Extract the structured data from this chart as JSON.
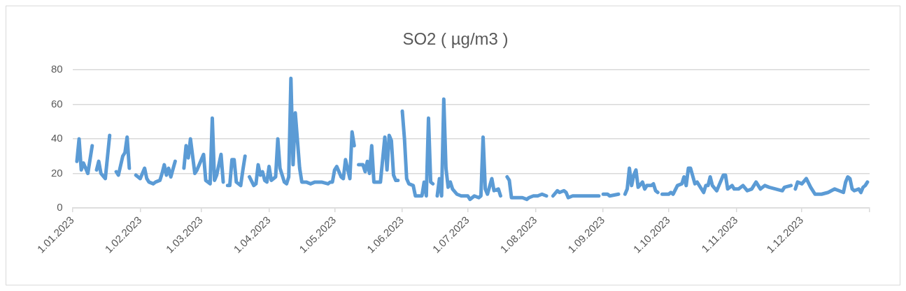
{
  "chart_data": {
    "type": "line",
    "title": "SO2 ( µg/m3 )",
    "x": [
      "2023-01-03",
      "2023-01-04",
      "2023-01-05",
      "2023-01-06",
      "2023-01-08",
      "2023-01-10",
      "2023-01-11",
      "2023-01-12",
      "2023-01-13",
      "2023-01-14",
      "2023-01-16",
      "2023-01-18",
      "2023-01-20",
      "2023-01-21",
      "2023-01-22",
      "2023-01-24",
      "2023-01-25",
      "2023-01-26",
      "2023-01-27",
      "2023-01-29",
      "2023-01-30",
      "2023-02-01",
      "2023-02-03",
      "2023-02-04",
      "2023-02-05",
      "2023-02-07",
      "2023-02-08",
      "2023-02-10",
      "2023-02-11",
      "2023-02-12",
      "2023-02-13",
      "2023-02-14",
      "2023-02-15",
      "2023-02-17",
      "2023-02-19",
      "2023-02-21",
      "2023-02-22",
      "2023-02-23",
      "2023-02-24",
      "2023-02-26",
      "2023-02-27",
      "2023-03-02",
      "2023-03-03",
      "2023-03-05",
      "2023-03-06",
      "2023-03-07",
      "2023-03-08",
      "2023-03-10",
      "2023-03-11",
      "2023-03-12",
      "2023-03-13",
      "2023-03-14",
      "2023-03-15",
      "2023-03-16",
      "2023-03-17",
      "2023-03-19",
      "2023-03-20",
      "2023-03-21",
      "2023-03-22",
      "2023-03-23",
      "2023-03-25",
      "2023-03-26",
      "2023-03-27",
      "2023-03-28",
      "2023-03-29",
      "2023-03-30",
      "2023-03-31",
      "2023-04-01",
      "2023-04-02",
      "2023-04-04",
      "2023-04-05",
      "2023-04-06",
      "2023-04-08",
      "2023-04-09",
      "2023-04-10",
      "2023-04-11",
      "2023-04-12",
      "2023-04-13",
      "2023-04-15",
      "2023-04-16",
      "2023-04-18",
      "2023-04-20",
      "2023-04-22",
      "2023-04-25",
      "2023-04-28",
      "2023-04-29",
      "2023-04-30",
      "2023-05-01",
      "2023-05-02",
      "2023-05-04",
      "2023-05-05",
      "2023-05-06",
      "2023-05-08",
      "2023-05-09",
      "2023-05-10",
      "2023-05-11",
      "2023-05-12",
      "2023-05-14",
      "2023-05-15",
      "2023-05-16",
      "2023-05-17",
      "2023-05-18",
      "2023-05-19",
      "2023-05-20",
      "2023-05-21",
      "2023-05-22",
      "2023-05-24",
      "2023-05-25",
      "2023-05-26",
      "2023-05-27",
      "2023-05-28",
      "2023-05-29",
      "2023-05-30",
      "2023-05-31",
      "2023-06-01",
      "2023-06-02",
      "2023-06-03",
      "2023-06-04",
      "2023-06-06",
      "2023-06-07",
      "2023-06-08",
      "2023-06-10",
      "2023-06-11",
      "2023-06-12",
      "2023-06-13",
      "2023-06-14",
      "2023-06-15",
      "2023-06-16",
      "2023-06-17",
      "2023-06-18",
      "2023-06-19",
      "2023-06-20",
      "2023-06-21",
      "2023-06-22",
      "2023-06-23",
      "2023-06-24",
      "2023-06-26",
      "2023-06-28",
      "2023-07-01",
      "2023-07-02",
      "2023-07-04",
      "2023-07-06",
      "2023-07-07",
      "2023-07-08",
      "2023-07-09",
      "2023-07-10",
      "2023-07-12",
      "2023-07-13",
      "2023-07-15",
      "2023-07-16",
      "2023-07-18",
      "2023-07-19",
      "2023-07-20",
      "2023-07-21",
      "2023-07-23",
      "2023-07-26",
      "2023-07-28",
      "2023-07-29",
      "2023-07-31",
      "2023-08-02",
      "2023-08-04",
      "2023-08-06",
      "2023-08-07",
      "2023-08-09",
      "2023-08-11",
      "2023-08-12",
      "2023-08-14",
      "2023-08-15",
      "2023-08-16",
      "2023-08-18",
      "2023-08-22",
      "2023-08-26",
      "2023-08-29",
      "2023-08-30",
      "2023-08-31",
      "2023-09-01",
      "2023-09-03",
      "2023-09-04",
      "2023-09-08",
      "2023-09-09",
      "2023-09-11",
      "2023-09-12",
      "2023-09-13",
      "2023-09-14",
      "2023-09-15",
      "2023-09-16",
      "2023-09-17",
      "2023-09-19",
      "2023-09-20",
      "2023-09-21",
      "2023-09-23",
      "2023-09-24",
      "2023-09-25",
      "2023-09-26",
      "2023-09-27",
      "2023-09-28",
      "2023-10-01",
      "2023-10-02",
      "2023-10-03",
      "2023-10-05",
      "2023-10-07",
      "2023-10-08",
      "2023-10-09",
      "2023-10-10",
      "2023-10-11",
      "2023-10-13",
      "2023-10-14",
      "2023-10-17",
      "2023-10-18",
      "2023-10-19",
      "2023-10-20",
      "2023-10-21",
      "2023-10-23",
      "2023-10-24",
      "2023-10-26",
      "2023-10-27",
      "2023-10-28",
      "2023-10-30",
      "2023-10-31",
      "2023-11-02",
      "2023-11-04",
      "2023-11-06",
      "2023-11-08",
      "2023-11-10",
      "2023-11-12",
      "2023-11-14",
      "2023-11-16",
      "2023-11-19",
      "2023-11-22",
      "2023-11-23",
      "2023-11-26",
      "2023-11-27",
      "2023-11-28",
      "2023-11-29",
      "2023-12-01",
      "2023-12-03",
      "2023-12-05",
      "2023-12-07",
      "2023-12-10",
      "2023-12-13",
      "2023-12-16",
      "2023-12-18",
      "2023-12-20",
      "2023-12-21",
      "2023-12-22",
      "2023-12-23",
      "2023-12-24",
      "2023-12-25",
      "2023-12-27",
      "2023-12-28",
      "2023-12-29",
      "2023-12-30",
      "2023-12-31"
    ],
    "series": [
      {
        "color": "#5b9bd5",
        "values": [
          27,
          40,
          22,
          26,
          20,
          36,
          null,
          22,
          27,
          20,
          17,
          42,
          null,
          21,
          19,
          30,
          32,
          41,
          23,
          null,
          19,
          17,
          23,
          17,
          15,
          14,
          15,
          16,
          20,
          25,
          19,
          23,
          18,
          27,
          null,
          23,
          36,
          29,
          40,
          20,
          22,
          31,
          16,
          14,
          52,
          16,
          19,
          31,
          15,
          null,
          13,
          13,
          28,
          28,
          15,
          13,
          22,
          30,
          null,
          18,
          13,
          14,
          25,
          19,
          21,
          16,
          15,
          24,
          16,
          18,
          40,
          23,
          15,
          14,
          18,
          75,
          25,
          55,
          23,
          15,
          15,
          14,
          15,
          15,
          14,
          15,
          15,
          22,
          24,
          18,
          17,
          28,
          17,
          44,
          36,
          null,
          25,
          25,
          21,
          27,
          20,
          36,
          15,
          15,
          15,
          15,
          41,
          22,
          42,
          39,
          19,
          16,
          16,
          null,
          56,
          40,
          17,
          14,
          13,
          7,
          7,
          7,
          15,
          7,
          52,
          15,
          14,
          null,
          7,
          17,
          7,
          63,
          23,
          12,
          15,
          11,
          8,
          7,
          7,
          5,
          7,
          6,
          7,
          41,
          11,
          8,
          17,
          10,
          11,
          7,
          null,
          18,
          16,
          6,
          6,
          6,
          5,
          6,
          7,
          7,
          8,
          7,
          null,
          7,
          10,
          9,
          10,
          9,
          6,
          7,
          7,
          7,
          7,
          7,
          null,
          8,
          8,
          7,
          8,
          null,
          8,
          11,
          23,
          13,
          19,
          22,
          12,
          15,
          11,
          13,
          13,
          14,
          10,
          9,
          null,
          8,
          8,
          9,
          8,
          13,
          14,
          18,
          13,
          23,
          23,
          14,
          15,
          9,
          13,
          13,
          18,
          13,
          10,
          13,
          19,
          19,
          11,
          13,
          11,
          11,
          13,
          10,
          11,
          15,
          11,
          13,
          12,
          11,
          10,
          12,
          13,
          null,
          11,
          15,
          14,
          17,
          12,
          8,
          8,
          9,
          11,
          10,
          9,
          15,
          18,
          17,
          11,
          10,
          11,
          9,
          12,
          13,
          15
        ]
      }
    ],
    "xlim": [
      "2023-01-01",
      "2024-01-01"
    ],
    "xticks": [
      {
        "value": "2023-01-01",
        "label": "1.01.2023"
      },
      {
        "value": "2023-02-01",
        "label": "1.02.2023"
      },
      {
        "value": "2023-03-01",
        "label": "1.03.2023"
      },
      {
        "value": "2023-04-01",
        "label": "1.04.2023"
      },
      {
        "value": "2023-05-01",
        "label": "1.05.2023"
      },
      {
        "value": "2023-06-01",
        "label": "1.06.2023"
      },
      {
        "value": "2023-07-01",
        "label": "1.07.2023"
      },
      {
        "value": "2023-08-01",
        "label": "1.08.2023"
      },
      {
        "value": "2023-09-01",
        "label": "1.09.2023"
      },
      {
        "value": "2023-10-01",
        "label": "1.10.2023"
      },
      {
        "value": "2023-11-01",
        "label": "1.11.2023"
      },
      {
        "value": "2023-12-01",
        "label": "1.12.2023"
      },
      {
        "value": "2024-01-01",
        "label": null
      }
    ],
    "ylim": [
      0,
      80
    ],
    "yticks": [
      0,
      20,
      40,
      60,
      80
    ],
    "grid": "y",
    "legend": false,
    "marker": "none",
    "line_style": "solid"
  }
}
